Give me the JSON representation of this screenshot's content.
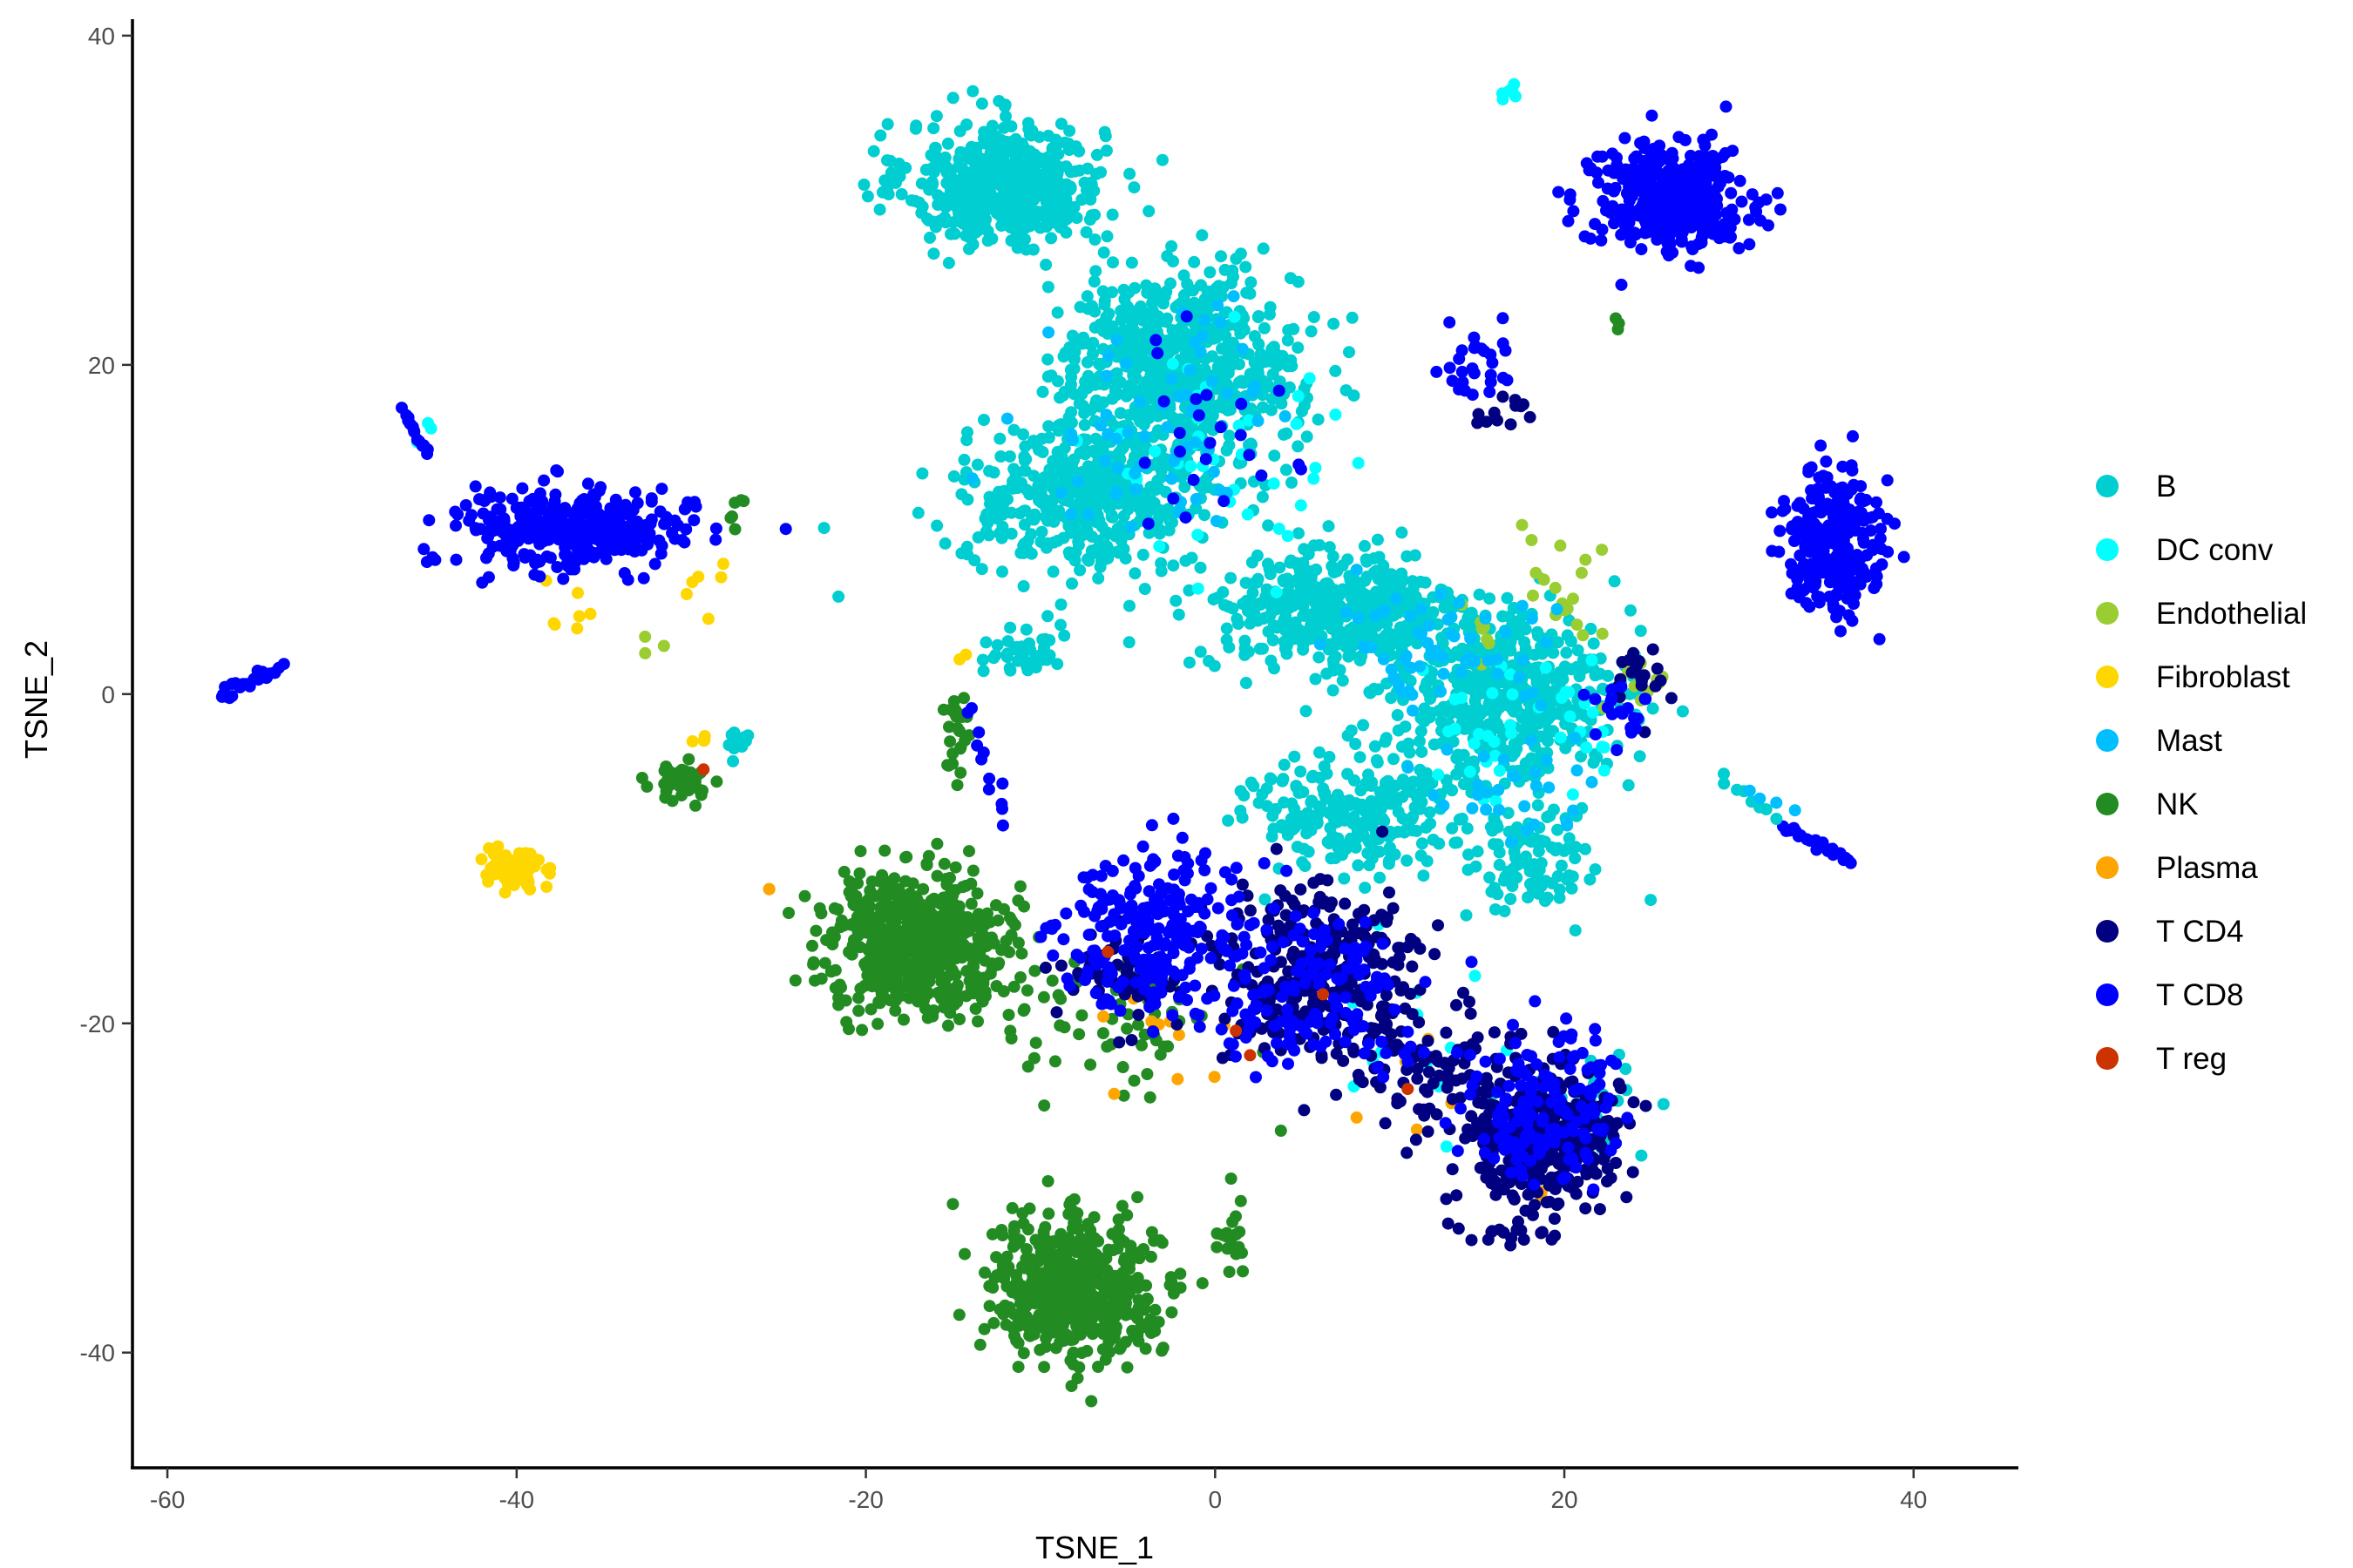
{
  "chart_data": {
    "type": "scatter",
    "xlabel": "TSNE_1",
    "ylabel": "TSNE_2",
    "xlim": [
      -62,
      46
    ],
    "ylim": [
      -47,
      41
    ],
    "x_ticks": [
      -60,
      -40,
      -20,
      0,
      20,
      40
    ],
    "x_tick_labels": [
      "-60",
      "-40",
      "-20",
      "0",
      "20",
      "40"
    ],
    "y_ticks": [
      -40,
      -20,
      0,
      20,
      40
    ],
    "y_tick_labels": [
      "-40",
      "-20",
      "0",
      "20",
      "40"
    ],
    "grid": false,
    "legend_position": "right",
    "legend": [
      {
        "name": "B",
        "color": "#00CED1"
      },
      {
        "name": "DC conv",
        "color": "#00FFFF"
      },
      {
        "name": "Endothelial",
        "color": "#9ACD32"
      },
      {
        "name": "Fibroblast",
        "color": "#FFD700"
      },
      {
        "name": "Mast",
        "color": "#00BFFF"
      },
      {
        "name": "NK",
        "color": "#228B22"
      },
      {
        "name": "Plasma",
        "color": "#FFA500"
      },
      {
        "name": "T CD4",
        "color": "#000080"
      },
      {
        "name": "T CD8",
        "color": "#0000FF"
      },
      {
        "name": "T reg",
        "color": "#CC3300"
      }
    ],
    "series": [
      {
        "name": "B",
        "clusters": [
          {
            "cx": -12,
            "cy": 31,
            "sx": 4.5,
            "sy": 3.0,
            "n": 550
          },
          {
            "cx": -2,
            "cy": 20,
            "sx": 5.5,
            "sy": 4.5,
            "n": 650
          },
          {
            "cx": -7,
            "cy": 12,
            "sx": 6,
            "sy": 3.5,
            "n": 450
          },
          {
            "cx": 7,
            "cy": 5,
            "sx": 6,
            "sy": 3,
            "n": 450
          },
          {
            "cx": 17,
            "cy": 0,
            "sx": 5,
            "sy": 4,
            "n": 500
          },
          {
            "cx": 8,
            "cy": -7,
            "sx": 5,
            "sy": 3,
            "n": 250
          },
          {
            "cx": 18,
            "cy": -10,
            "sx": 3,
            "sy": 3,
            "n": 100
          },
          {
            "cx": -11,
            "cy": 2.5,
            "sx": 1.8,
            "sy": 1.2,
            "n": 40
          },
          {
            "cx": -27.5,
            "cy": -3,
            "sx": 0.6,
            "sy": 0.8,
            "n": 12
          },
          {
            "cx": 21,
            "cy": -25,
            "sx": 3,
            "sy": 3,
            "n": 35
          }
        ]
      },
      {
        "name": "DC conv",
        "clusters": [
          {
            "cx": 16.5,
            "cy": 36.5,
            "sx": 0.5,
            "sy": 0.4,
            "n": 6
          },
          {
            "cx": -45.5,
            "cy": 16,
            "sx": 0.5,
            "sy": 1,
            "n": 3
          },
          {
            "cx": 0,
            "cy": 14,
            "sx": 6,
            "sy": 6,
            "n": 40
          },
          {
            "cx": 18,
            "cy": -2,
            "sx": 5,
            "sy": 4,
            "n": 40
          },
          {
            "cx": 12,
            "cy": -20,
            "sx": 6,
            "sy": 5,
            "n": 15
          }
        ]
      },
      {
        "name": "Endothelial",
        "clusters": [
          {
            "cx": 18,
            "cy": 6,
            "sx": 4,
            "sy": 3,
            "n": 25
          },
          {
            "cx": 24,
            "cy": 1,
            "sx": 1.5,
            "sy": 1.5,
            "n": 10
          },
          {
            "cx": -32,
            "cy": 3,
            "sx": 0.8,
            "sy": 0.8,
            "n": 3
          }
        ]
      },
      {
        "name": "Fibroblast",
        "clusters": [
          {
            "cx": -40,
            "cy": -10.5,
            "sx": 1.3,
            "sy": 0.9,
            "n": 70
          },
          {
            "cx": -37,
            "cy": 5,
            "sx": 1.5,
            "sy": 2.5,
            "n": 8
          },
          {
            "cx": -29,
            "cy": 7,
            "sx": 1.2,
            "sy": 1.5,
            "n": 6
          },
          {
            "cx": -29.5,
            "cy": -3,
            "sx": 0.5,
            "sy": 0.8,
            "n": 4
          },
          {
            "cx": -14.5,
            "cy": 2,
            "sx": 0.4,
            "sy": 0.4,
            "n": 2
          }
        ]
      },
      {
        "name": "Mast",
        "clusters": [
          {
            "cx": -3,
            "cy": 16,
            "sx": 6,
            "sy": 5,
            "n": 70
          },
          {
            "cx": 13,
            "cy": 3,
            "sx": 6,
            "sy": 3,
            "n": 60
          },
          {
            "cx": 18,
            "cy": -6,
            "sx": 4,
            "sy": 3,
            "n": 30
          }
        ]
      },
      {
        "name": "NK",
        "clusters": [
          {
            "cx": -17,
            "cy": -15,
            "sx": 4.2,
            "sy": 3.2,
            "n": 600
          },
          {
            "cx": -8,
            "cy": -36,
            "sx": 3.8,
            "sy": 3.3,
            "n": 550
          },
          {
            "cx": -30.5,
            "cy": -5.5,
            "sx": 1.3,
            "sy": 1.0,
            "n": 45
          },
          {
            "cx": -14.8,
            "cy": -3,
            "sx": 0.6,
            "sy": 2.2,
            "n": 25
          },
          {
            "cx": -6,
            "cy": -20,
            "sx": 5,
            "sy": 4,
            "n": 60
          },
          {
            "cx": -27.5,
            "cy": 11,
            "sx": 0.4,
            "sy": 0.8,
            "n": 6
          },
          {
            "cx": 23,
            "cy": 22.5,
            "sx": 0.5,
            "sy": 0.5,
            "n": 3
          },
          {
            "cx": 1,
            "cy": -33,
            "sx": 1.0,
            "sy": 2.0,
            "n": 20
          }
        ]
      },
      {
        "name": "Plasma",
        "clusters": [
          {
            "cx": -3,
            "cy": -20,
            "sx": 5,
            "sy": 3,
            "n": 12
          },
          {
            "cx": 10,
            "cy": -22,
            "sx": 4,
            "sy": 3,
            "n": 6
          },
          {
            "cx": 19,
            "cy": -31,
            "sx": 0.6,
            "sy": 0.6,
            "n": 2
          },
          {
            "cx": -25.5,
            "cy": -12,
            "sx": 0.3,
            "sy": 0.3,
            "n": 2
          }
        ]
      },
      {
        "name": "T CD4",
        "clusters": [
          {
            "cx": 19,
            "cy": -27,
            "sx": 3.5,
            "sy": 3.5,
            "n": 330
          },
          {
            "cx": 6,
            "cy": -17,
            "sx": 4.5,
            "sy": 4.5,
            "n": 320
          },
          {
            "cx": -5,
            "cy": -17,
            "sx": 3,
            "sy": 3,
            "n": 70
          },
          {
            "cx": 13,
            "cy": -23,
            "sx": 4,
            "sy": 3,
            "n": 80
          },
          {
            "cx": 16,
            "cy": 17,
            "sx": 1.5,
            "sy": 1,
            "n": 12
          },
          {
            "cx": 24,
            "cy": 1,
            "sx": 1.5,
            "sy": 2,
            "n": 20
          },
          {
            "cx": 17,
            "cy": -33,
            "sx": 3,
            "sy": 0.5,
            "n": 15
          }
        ]
      },
      {
        "name": "T CD8",
        "clusters": [
          {
            "cx": 26,
            "cy": 30,
            "sx": 3.5,
            "sy": 2.6,
            "n": 400
          },
          {
            "cx": 35.5,
            "cy": 9,
            "sx": 2.3,
            "sy": 3.3,
            "n": 300
          },
          {
            "cx": -37,
            "cy": 10,
            "sx": 5.5,
            "sy": 1.9,
            "n": 330
          },
          {
            "cx": -4,
            "cy": -14,
            "sx": 4.2,
            "sy": 4,
            "n": 220
          },
          {
            "cx": 5,
            "cy": -18,
            "sx": 5,
            "sy": 4,
            "n": 150
          },
          {
            "cx": 19,
            "cy": -25,
            "sx": 3.5,
            "sy": 3.5,
            "n": 150
          },
          {
            "cx": 15,
            "cy": 20,
            "sx": 1.5,
            "sy": 2,
            "n": 28
          },
          {
            "cx": 23,
            "cy": -1,
            "sx": 1.5,
            "sy": 2,
            "n": 20
          },
          {
            "cx": -1,
            "cy": 16,
            "sx": 5,
            "sy": 5,
            "n": 25
          }
        ]
      },
      {
        "name": "T reg",
        "clusters": [
          {
            "cx": -29.3,
            "cy": -4.8,
            "sx": 0.2,
            "sy": 0.2,
            "n": 1
          },
          {
            "cx": 6,
            "cy": -18.5,
            "sx": 0.3,
            "sy": 0.3,
            "n": 1
          },
          {
            "cx": 1,
            "cy": -20.5,
            "sx": 0.3,
            "sy": 0.3,
            "n": 1
          },
          {
            "cx": -6.5,
            "cy": -15.5,
            "sx": 0.3,
            "sy": 0.3,
            "n": 1
          },
          {
            "cx": 11,
            "cy": -24,
            "sx": 0.3,
            "sy": 0.3,
            "n": 1
          },
          {
            "cx": 1.8,
            "cy": -22,
            "sx": 0.3,
            "sy": 0.3,
            "n": 1
          }
        ]
      }
    ],
    "strands": [
      {
        "series": "T CD8",
        "from": [
          -57,
          0
        ],
        "to": [
          -53.5,
          1.5
        ],
        "n": 28,
        "jitter": 0.35
      },
      {
        "series": "T CD8",
        "from": [
          -46.5,
          17.3
        ],
        "to": [
          -45,
          14.5
        ],
        "n": 14,
        "jitter": 0.25
      },
      {
        "series": "T CD8",
        "from": [
          32.5,
          -8
        ],
        "to": [
          36.5,
          -10.3
        ],
        "n": 22,
        "jitter": 0.25
      },
      {
        "series": "B",
        "from": [
          29,
          -5
        ],
        "to": [
          32,
          -7.5
        ],
        "n": 8,
        "jitter": 0.3
      },
      {
        "series": "Mast",
        "from": [
          30.5,
          -6
        ],
        "to": [
          33,
          -7
        ],
        "n": 4,
        "jitter": 0.3
      },
      {
        "series": "T CD8",
        "from": [
          -14,
          -1
        ],
        "to": [
          -12,
          -8
        ],
        "n": 12,
        "jitter": 0.5
      }
    ]
  }
}
